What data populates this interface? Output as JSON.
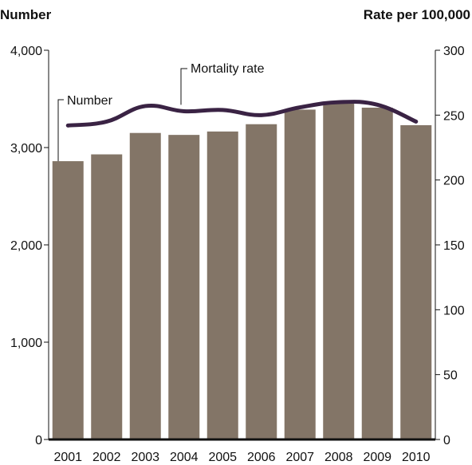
{
  "chart_data": {
    "type": "bar",
    "left_axis_title": "Number",
    "right_axis_title": "Rate per 100,000",
    "categories": [
      "2001",
      "2002",
      "2003",
      "2004",
      "2005",
      "2006",
      "2007",
      "2008",
      "2009",
      "2010"
    ],
    "series": [
      {
        "name": "Number",
        "kind": "bar",
        "axis": "left",
        "values": [
          2860,
          2930,
          3150,
          3130,
          3165,
          3240,
          3390,
          3460,
          3410,
          3230
        ]
      },
      {
        "name": "Mortality rate",
        "kind": "line",
        "axis": "right",
        "values": [
          242,
          245,
          257,
          253,
          254,
          250,
          256,
          260,
          258,
          245
        ]
      }
    ],
    "left_axis": {
      "min": 0,
      "max": 4000,
      "ticks": [
        0,
        1000,
        2000,
        3000,
        4000
      ],
      "tick_labels": [
        "0",
        "1,000",
        "2,000",
        "3,000",
        "4,000"
      ]
    },
    "right_axis": {
      "min": 0,
      "max": 300,
      "ticks": [
        0,
        50,
        100,
        150,
        200,
        250,
        300
      ],
      "tick_labels": [
        "0",
        "50",
        "100",
        "150",
        "200",
        "250",
        "300"
      ]
    },
    "annotations": {
      "bar_label": "Number",
      "line_label": "Mortality rate"
    },
    "colors": {
      "bar": "#837567",
      "line": "#3a2344"
    },
    "grid": false,
    "legend": "none"
  }
}
